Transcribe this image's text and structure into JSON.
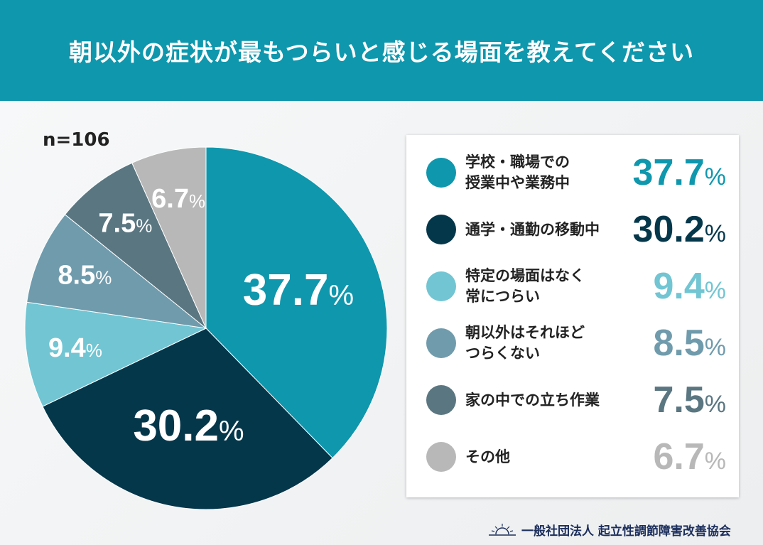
{
  "header": {
    "title": "朝以外の症状が最もつらいと感じる場面を教えてください"
  },
  "sample": "n=106",
  "footer": {
    "org": "一般社団法人 起立性調節障害改善協会",
    "logo": "sunrise-logo"
  },
  "chart_data": {
    "type": "pie",
    "title": "朝以外の症状が最もつらいと感じる場面を教えてください",
    "unit": "%",
    "slices": [
      {
        "label": "学校・職場での\n授業中や業務中",
        "value": 37.7,
        "color": "#0f97ad"
      },
      {
        "label": "通学・通勤の移動中",
        "value": 30.2,
        "color": "#05374b"
      },
      {
        "label": "特定の場面はなく\n常につらい",
        "value": 9.4,
        "color": "#72c5d3"
      },
      {
        "label": "朝以外はそれほど\nつらくない",
        "value": 8.5,
        "color": "#709bac"
      },
      {
        "label": "家の中での立ち作業",
        "value": 7.5,
        "color": "#5a7681"
      },
      {
        "label": "その他",
        "value": 6.7,
        "color": "#b8b8b8"
      }
    ],
    "start": "top",
    "direction": "clockwise",
    "legend": "right"
  }
}
